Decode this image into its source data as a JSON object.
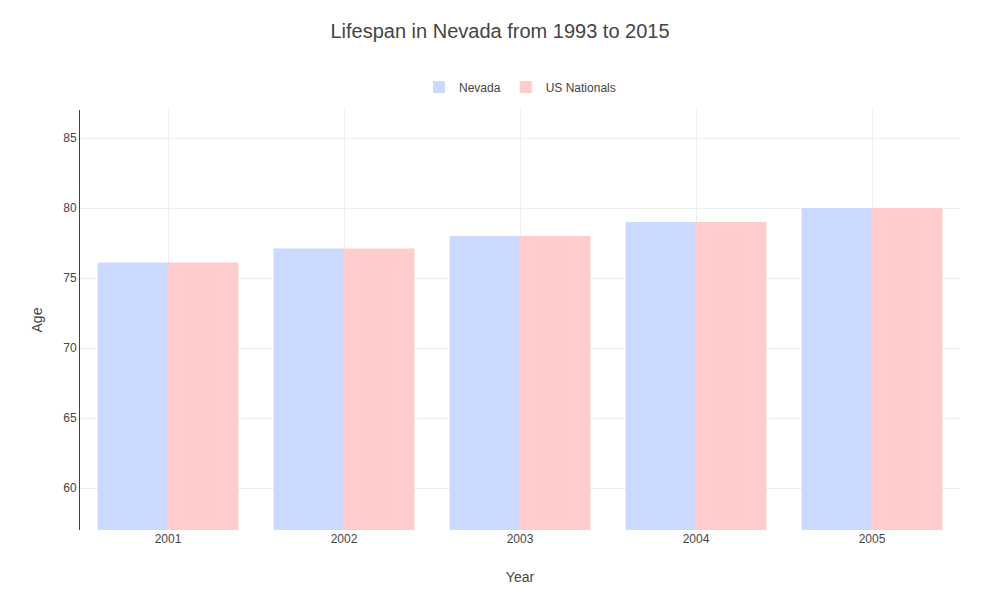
{
  "chart_data": {
    "type": "bar",
    "title": "Lifespan in Nevada from 1993 to 2015",
    "xlabel": "Year",
    "ylabel": "Age",
    "categories": [
      "2001",
      "2002",
      "2003",
      "2004",
      "2005"
    ],
    "series": [
      {
        "name": "Nevada",
        "color": "#ccd9ff",
        "values": [
          76.1,
          77.1,
          78.0,
          79.0,
          80.0
        ]
      },
      {
        "name": "US Nationals",
        "color": "#ffcccc",
        "values": [
          76.1,
          77.1,
          78.0,
          79.0,
          80.0
        ]
      }
    ],
    "ylim": [
      57,
      87
    ],
    "yticks": [
      60,
      65,
      70,
      75,
      80,
      85
    ],
    "grid": true,
    "legend": "upper center"
  }
}
